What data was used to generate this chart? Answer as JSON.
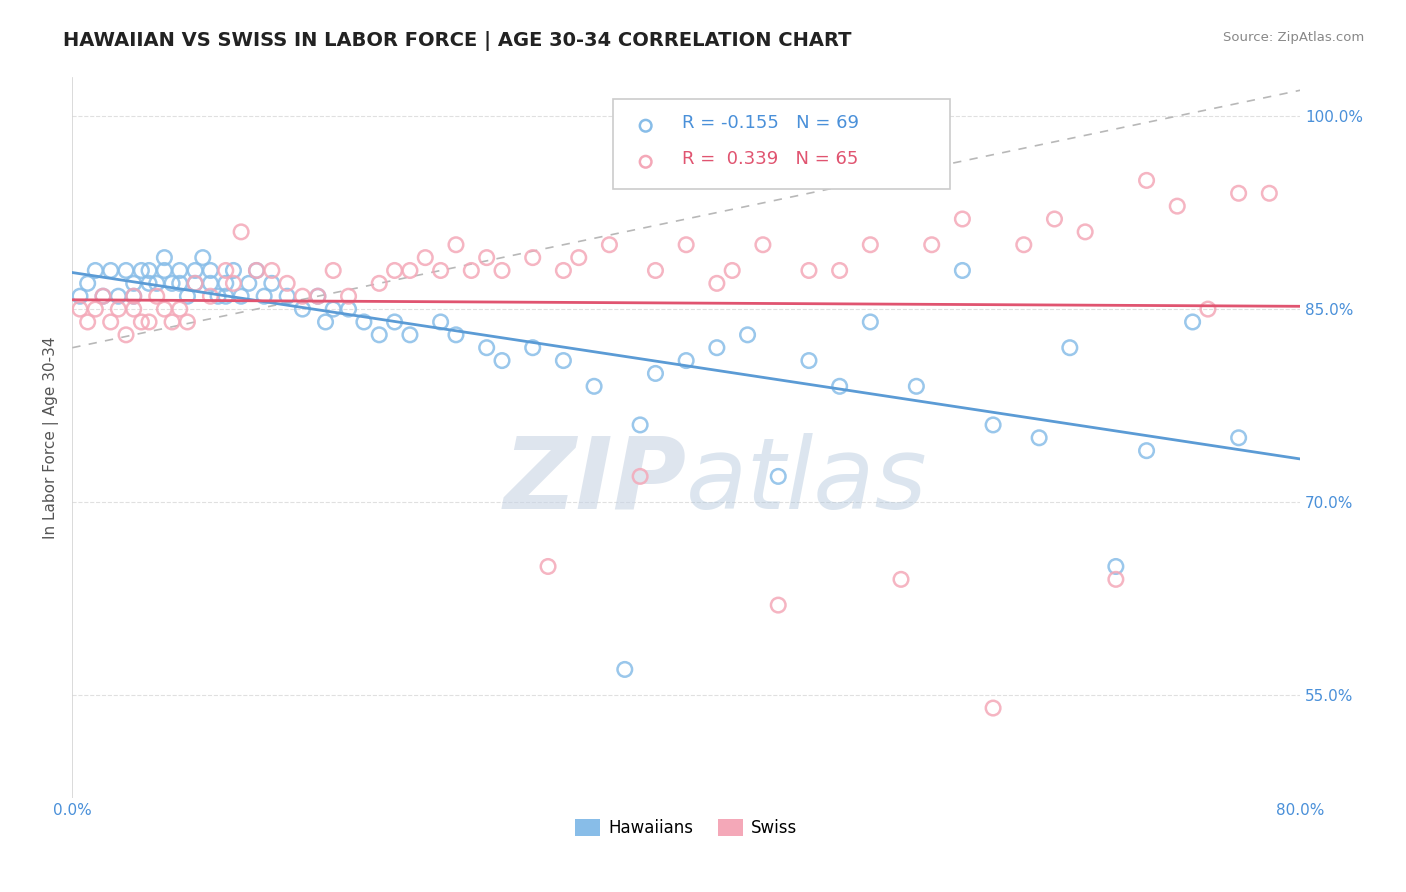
{
  "title": "HAWAIIAN VS SWISS IN LABOR FORCE | AGE 30-34 CORRELATION CHART",
  "source_text": "Source: ZipAtlas.com",
  "ylabel": "In Labor Force | Age 30-34",
  "xlim": [
    0.0,
    0.8
  ],
  "ylim": [
    0.47,
    1.03
  ],
  "xticks": [
    0.0,
    0.1,
    0.2,
    0.3,
    0.4,
    0.5,
    0.6,
    0.7,
    0.8
  ],
  "ytick_positions": [
    0.55,
    0.7,
    0.85,
    1.0
  ],
  "ytick_labels": [
    "55.0%",
    "70.0%",
    "85.0%",
    "100.0%"
  ],
  "legend_r_hawaiian": "-0.155",
  "legend_n_hawaiian": "69",
  "legend_r_swiss": "0.339",
  "legend_n_swiss": "65",
  "color_hawaiian": "#88bde8",
  "color_swiss": "#f4a8b8",
  "color_trend_hawaiian": "#5b9bd5",
  "color_trend_swiss": "#e05470",
  "color_trend_dashed": "#b8b8b8",
  "background_color": "#ffffff",
  "grid_color": "#e0e0e0",
  "watermark_color": "#dde5ef",
  "title_fontsize": 14,
  "axis_label_fontsize": 11,
  "tick_fontsize": 11,
  "legend_fontsize": 13,
  "hawaiian_x": [
    0.005,
    0.01,
    0.015,
    0.02,
    0.025,
    0.03,
    0.035,
    0.04,
    0.04,
    0.045,
    0.05,
    0.05,
    0.055,
    0.06,
    0.06,
    0.065,
    0.07,
    0.07,
    0.075,
    0.08,
    0.08,
    0.085,
    0.09,
    0.09,
    0.095,
    0.1,
    0.1,
    0.105,
    0.11,
    0.115,
    0.12,
    0.125,
    0.13,
    0.14,
    0.15,
    0.16,
    0.165,
    0.17,
    0.18,
    0.19,
    0.2,
    0.21,
    0.22,
    0.24,
    0.25,
    0.27,
    0.28,
    0.3,
    0.32,
    0.34,
    0.36,
    0.37,
    0.38,
    0.4,
    0.42,
    0.44,
    0.46,
    0.48,
    0.5,
    0.52,
    0.55,
    0.58,
    0.6,
    0.63,
    0.65,
    0.68,
    0.7,
    0.73,
    0.76
  ],
  "hawaiian_y": [
    0.86,
    0.87,
    0.88,
    0.86,
    0.88,
    0.86,
    0.88,
    0.87,
    0.86,
    0.88,
    0.87,
    0.88,
    0.87,
    0.89,
    0.88,
    0.87,
    0.88,
    0.87,
    0.86,
    0.88,
    0.87,
    0.89,
    0.87,
    0.88,
    0.86,
    0.87,
    0.86,
    0.88,
    0.86,
    0.87,
    0.88,
    0.86,
    0.87,
    0.86,
    0.85,
    0.86,
    0.84,
    0.85,
    0.85,
    0.84,
    0.83,
    0.84,
    0.83,
    0.84,
    0.83,
    0.82,
    0.81,
    0.82,
    0.81,
    0.79,
    0.57,
    0.76,
    0.8,
    0.81,
    0.82,
    0.83,
    0.72,
    0.81,
    0.79,
    0.84,
    0.79,
    0.88,
    0.76,
    0.75,
    0.82,
    0.65,
    0.74,
    0.84,
    0.75
  ],
  "swiss_x": [
    0.005,
    0.01,
    0.015,
    0.02,
    0.025,
    0.03,
    0.035,
    0.04,
    0.04,
    0.045,
    0.05,
    0.055,
    0.06,
    0.065,
    0.07,
    0.075,
    0.08,
    0.09,
    0.1,
    0.105,
    0.11,
    0.12,
    0.13,
    0.14,
    0.15,
    0.16,
    0.17,
    0.18,
    0.2,
    0.21,
    0.22,
    0.23,
    0.24,
    0.25,
    0.26,
    0.27,
    0.28,
    0.3,
    0.31,
    0.32,
    0.33,
    0.35,
    0.37,
    0.38,
    0.4,
    0.42,
    0.43,
    0.45,
    0.46,
    0.48,
    0.5,
    0.52,
    0.54,
    0.56,
    0.58,
    0.6,
    0.62,
    0.64,
    0.66,
    0.68,
    0.7,
    0.72,
    0.74,
    0.76,
    0.78
  ],
  "swiss_y": [
    0.85,
    0.84,
    0.85,
    0.86,
    0.84,
    0.85,
    0.83,
    0.86,
    0.85,
    0.84,
    0.84,
    0.86,
    0.85,
    0.84,
    0.85,
    0.84,
    0.87,
    0.86,
    0.88,
    0.87,
    0.91,
    0.88,
    0.88,
    0.87,
    0.86,
    0.86,
    0.88,
    0.86,
    0.87,
    0.88,
    0.88,
    0.89,
    0.88,
    0.9,
    0.88,
    0.89,
    0.88,
    0.89,
    0.65,
    0.88,
    0.89,
    0.9,
    0.72,
    0.88,
    0.9,
    0.87,
    0.88,
    0.9,
    0.62,
    0.88,
    0.88,
    0.9,
    0.64,
    0.9,
    0.92,
    0.54,
    0.9,
    0.92,
    0.91,
    0.64,
    0.95,
    0.93,
    0.85,
    0.94,
    0.94
  ]
}
